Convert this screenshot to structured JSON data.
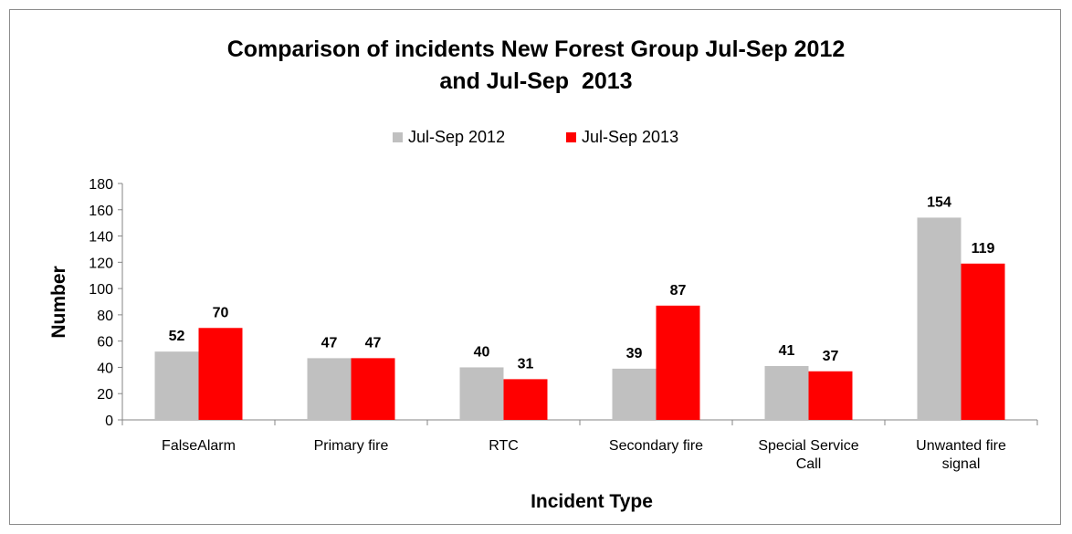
{
  "chart_data": {
    "type": "bar",
    "title_lines": [
      "Comparison of incidents New Forest Group Jul-Sep 2012",
      "and Jul-Sep  2013"
    ],
    "xlabel": "Incident Type",
    "ylabel": "Number",
    "ylim": [
      0,
      180
    ],
    "yticks": [
      0,
      20,
      40,
      60,
      80,
      100,
      120,
      140,
      160,
      180
    ],
    "grid": false,
    "legend_position": "top",
    "categories": [
      [
        "FalseAlarm"
      ],
      [
        "Primary fire"
      ],
      [
        "RTC"
      ],
      [
        "Secondary fire"
      ],
      [
        "Special Service",
        "Call"
      ],
      [
        "Unwanted fire",
        "signal"
      ]
    ],
    "series": [
      {
        "name": "Jul-Sep 2012",
        "color": "#c0c0c0",
        "values": [
          52,
          47,
          40,
          39,
          41,
          154
        ]
      },
      {
        "name": "Jul-Sep 2013",
        "color": "#ff0000",
        "values": [
          70,
          47,
          31,
          87,
          37,
          119
        ]
      }
    ]
  }
}
